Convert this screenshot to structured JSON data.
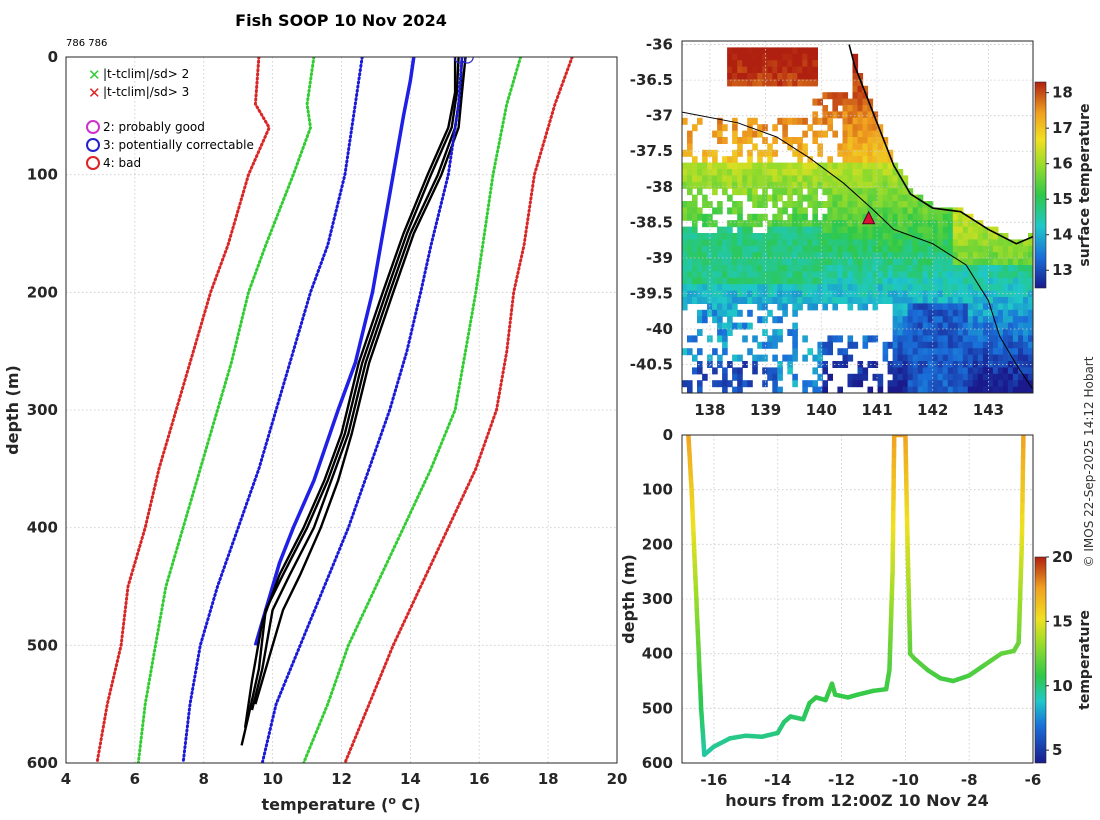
{
  "title": "Fish SOOP 10 Nov 2024",
  "cruise_ids": "786 786",
  "watermark": "© IMOS 22-Sep-2025 14:12 Hobart",
  "legend": {
    "flag_x_2": "|t-tclim|/sd> 2",
    "flag_x_3": "|t-tclim|/sd> 3",
    "qc2": "2: probably good",
    "qc3": "3: potentially correctable",
    "qc4": "4: bad"
  },
  "colors": {
    "observed": "#000000",
    "climatology": "#1f1fe6",
    "sd1": "#1a1ad9",
    "sd2": "#33cc33",
    "sd3": "#d92626",
    "qc2": "#cc33cc",
    "qc3": "#2222cc",
    "qc4": "#dd2222"
  },
  "chart_data": [
    {
      "type": "line",
      "title": "Fish SOOP 10 Nov 2024",
      "xlabel": "temperature (",
      "xlabel_sup": "o",
      "xlabel_end": " C)",
      "ylabel": "depth (m)",
      "xlim": [
        4,
        20
      ],
      "ylim": [
        0,
        600
      ],
      "y_reversed": true,
      "xticks": [
        4,
        6,
        8,
        10,
        12,
        14,
        16,
        18,
        20
      ],
      "yticks": [
        0,
        100,
        200,
        300,
        400,
        500,
        600
      ],
      "series": [
        {
          "name": "climatology",
          "style": "solid",
          "color": "#1f1fe6",
          "points": [
            [
              14.1,
              0
            ],
            [
              14.0,
              20
            ],
            [
              13.8,
              50
            ],
            [
              13.5,
              100
            ],
            [
              13.2,
              150
            ],
            [
              12.9,
              200
            ],
            [
              12.4,
              260
            ],
            [
              11.9,
              300
            ],
            [
              11.2,
              360
            ],
            [
              10.6,
              400
            ],
            [
              10.2,
              430
            ],
            [
              9.8,
              470
            ],
            [
              9.5,
              500
            ]
          ]
        },
        {
          "name": "observed 1",
          "style": "solid",
          "color": "#000000",
          "points": [
            [
              15.4,
              0
            ],
            [
              15.35,
              30
            ],
            [
              15.2,
              60
            ],
            [
              14.6,
              100
            ],
            [
              13.9,
              150
            ],
            [
              13.3,
              200
            ],
            [
              12.6,
              260
            ],
            [
              12.1,
              320
            ],
            [
              11.6,
              360
            ],
            [
              11.0,
              400
            ],
            [
              10.3,
              440
            ],
            [
              9.8,
              470
            ],
            [
              9.6,
              520
            ],
            [
              9.3,
              560
            ],
            [
              9.1,
              585
            ]
          ]
        },
        {
          "name": "observed 2",
          "style": "solid",
          "color": "#000000",
          "points": [
            [
              15.5,
              0
            ],
            [
              15.45,
              30
            ],
            [
              15.3,
              60
            ],
            [
              14.8,
              100
            ],
            [
              14.0,
              150
            ],
            [
              13.4,
              200
            ],
            [
              12.7,
              260
            ],
            [
              12.2,
              320
            ],
            [
              11.7,
              360
            ],
            [
              11.2,
              400
            ],
            [
              10.5,
              440
            ],
            [
              10.0,
              470
            ],
            [
              9.7,
              520
            ],
            [
              9.4,
              555
            ]
          ]
        },
        {
          "name": "observed 3",
          "style": "solid",
          "color": "#000000",
          "points": [
            [
              15.6,
              0
            ],
            [
              15.5,
              30
            ],
            [
              15.4,
              60
            ],
            [
              14.9,
              100
            ],
            [
              14.1,
              150
            ],
            [
              13.5,
              200
            ],
            [
              12.8,
              260
            ],
            [
              12.3,
              320
            ],
            [
              11.9,
              360
            ],
            [
              11.4,
              400
            ],
            [
              10.8,
              440
            ],
            [
              10.3,
              470
            ],
            [
              9.9,
              510
            ],
            [
              9.5,
              550
            ]
          ]
        },
        {
          "name": "observed 4",
          "style": "solid",
          "color": "#000000",
          "points": [
            [
              15.3,
              0
            ],
            [
              15.3,
              30
            ],
            [
              15.1,
              60
            ],
            [
              14.5,
              100
            ],
            [
              13.8,
              150
            ],
            [
              13.2,
              200
            ],
            [
              12.5,
              260
            ],
            [
              12.0,
              320
            ],
            [
              11.5,
              360
            ],
            [
              10.9,
              400
            ],
            [
              10.2,
              440
            ],
            [
              9.7,
              480
            ],
            [
              9.4,
              530
            ],
            [
              9.2,
              570
            ]
          ]
        },
        {
          "name": "clim -1sd",
          "style": "dotted",
          "color": "#1a1ad9",
          "points": [
            [
              12.6,
              0
            ],
            [
              12.4,
              40
            ],
            [
              12.1,
              100
            ],
            [
              11.6,
              160
            ],
            [
              11.1,
              200
            ],
            [
              10.6,
              250
            ],
            [
              10.1,
              300
            ],
            [
              9.6,
              350
            ],
            [
              9.0,
              400
            ],
            [
              8.4,
              450
            ],
            [
              7.9,
              500
            ],
            [
              7.6,
              550
            ],
            [
              7.4,
              600
            ]
          ]
        },
        {
          "name": "clim +1sd",
          "style": "dotted",
          "color": "#1a1ad9",
          "points": [
            [
              15.5,
              0
            ],
            [
              15.4,
              40
            ],
            [
              15.1,
              100
            ],
            [
              14.6,
              160
            ],
            [
              14.3,
              200
            ],
            [
              13.9,
              250
            ],
            [
              13.4,
              300
            ],
            [
              12.8,
              350
            ],
            [
              12.2,
              400
            ],
            [
              11.5,
              450
            ],
            [
              10.8,
              500
            ],
            [
              10.1,
              550
            ],
            [
              9.7,
              600
            ]
          ]
        },
        {
          "name": "clim -2sd",
          "style": "dotted",
          "color": "#33cc33",
          "points": [
            [
              11.2,
              0
            ],
            [
              11.0,
              40
            ],
            [
              11.1,
              60
            ],
            [
              10.6,
              100
            ],
            [
              9.8,
              160
            ],
            [
              9.3,
              200
            ],
            [
              8.8,
              260
            ],
            [
              8.4,
              300
            ],
            [
              7.9,
              350
            ],
            [
              7.4,
              400
            ],
            [
              6.9,
              450
            ],
            [
              6.6,
              500
            ],
            [
              6.3,
              550
            ],
            [
              6.1,
              600
            ]
          ]
        },
        {
          "name": "clim +2sd",
          "style": "dotted",
          "color": "#33cc33",
          "points": [
            [
              17.2,
              0
            ],
            [
              16.8,
              40
            ],
            [
              16.4,
              100
            ],
            [
              16.1,
              160
            ],
            [
              15.9,
              200
            ],
            [
              15.6,
              250
            ],
            [
              15.3,
              300
            ],
            [
              14.6,
              350
            ],
            [
              13.8,
              400
            ],
            [
              13.0,
              450
            ],
            [
              12.2,
              500
            ],
            [
              11.6,
              550
            ],
            [
              10.9,
              600
            ]
          ]
        },
        {
          "name": "clim -3sd",
          "style": "dotted",
          "color": "#d92626",
          "points": [
            [
              9.6,
              0
            ],
            [
              9.5,
              40
            ],
            [
              9.9,
              60
            ],
            [
              9.3,
              100
            ],
            [
              8.7,
              160
            ],
            [
              8.2,
              200
            ],
            [
              7.6,
              260
            ],
            [
              7.2,
              300
            ],
            [
              6.7,
              350
            ],
            [
              6.3,
              400
            ],
            [
              5.8,
              450
            ],
            [
              5.6,
              500
            ],
            [
              5.2,
              550
            ],
            [
              4.9,
              600
            ]
          ]
        },
        {
          "name": "clim +3sd",
          "style": "dotted",
          "color": "#d92626",
          "points": [
            [
              18.7,
              0
            ],
            [
              18.2,
              40
            ],
            [
              17.6,
              100
            ],
            [
              17.3,
              160
            ],
            [
              17.0,
              200
            ],
            [
              16.8,
              250
            ],
            [
              16.5,
              300
            ],
            [
              15.9,
              350
            ],
            [
              15.1,
              400
            ],
            [
              14.3,
              450
            ],
            [
              13.5,
              500
            ],
            [
              12.8,
              550
            ],
            [
              12.1,
              600
            ]
          ]
        }
      ],
      "markers": [
        {
          "name": "qc3 circle",
          "x": 15.45,
          "y": 0
        },
        {
          "name": "qc3 circle",
          "x": 15.65,
          "y": 0
        }
      ]
    },
    {
      "type": "heatmap",
      "title": "",
      "xlabel": "",
      "ylabel": "",
      "xlim": [
        137.5,
        143.8
      ],
      "ylim": [
        -40.9,
        -35.95
      ],
      "xticks": [
        138,
        139,
        140,
        141,
        142,
        143
      ],
      "yticks": [
        -36,
        -36.5,
        -37,
        -37.5,
        -38,
        -38.5,
        -39,
        -39.5,
        -40,
        -40.5
      ],
      "colorbar_label": "surface temperature",
      "colorbar_range": [
        12.5,
        18.3
      ],
      "colorbar_ticks": [
        13,
        14,
        15,
        16,
        17,
        18
      ],
      "coastline": [
        [
          140.5,
          -36.0
        ],
        [
          140.6,
          -36.3
        ],
        [
          140.8,
          -36.7
        ],
        [
          141.1,
          -37.3
        ],
        [
          141.3,
          -37.7
        ],
        [
          141.6,
          -38.1
        ],
        [
          142.0,
          -38.3
        ],
        [
          142.5,
          -38.35
        ],
        [
          143.0,
          -38.6
        ],
        [
          143.5,
          -38.8
        ],
        [
          143.8,
          -38.7
        ]
      ],
      "track": [
        [
          137.5,
          -36.95
        ],
        [
          138.5,
          -37.1
        ],
        [
          139.2,
          -37.3
        ],
        [
          139.8,
          -37.6
        ],
        [
          140.4,
          -37.95
        ],
        [
          140.9,
          -38.3
        ],
        [
          141.3,
          -38.6
        ],
        [
          142.0,
          -38.8
        ],
        [
          142.6,
          -39.1
        ],
        [
          143.0,
          -39.6
        ],
        [
          143.2,
          -40.1
        ],
        [
          143.5,
          -40.5
        ],
        [
          143.8,
          -40.85
        ]
      ],
      "station": {
        "lon": 140.85,
        "lat": -38.45
      }
    },
    {
      "type": "line",
      "title": "",
      "xlabel": "hours from 12:00Z 10 Nov 24",
      "ylabel": "depth (m)",
      "xlim": [
        -17,
        -6
      ],
      "ylim": [
        0,
        600
      ],
      "y_reversed": true,
      "xticks": [
        -16,
        -14,
        -12,
        -10,
        -8,
        -6
      ],
      "yticks": [
        0,
        100,
        200,
        300,
        400,
        500,
        600
      ],
      "colorbar_label": "temperature",
      "colorbar_range": [
        4,
        20
      ],
      "colorbar_ticks": [
        5,
        10,
        15,
        20
      ],
      "series": [
        {
          "name": "depth vs time",
          "points": [
            [
              -16.8,
              0
            ],
            [
              -16.7,
              100
            ],
            [
              -16.55,
              300
            ],
            [
              -16.4,
              500
            ],
            [
              -16.3,
              585
            ],
            [
              -16.0,
              570
            ],
            [
              -15.5,
              555
            ],
            [
              -15.0,
              550
            ],
            [
              -14.5,
              552
            ],
            [
              -14.0,
              545
            ],
            [
              -13.8,
              525
            ],
            [
              -13.6,
              515
            ],
            [
              -13.2,
              520
            ],
            [
              -13.0,
              490
            ],
            [
              -12.8,
              480
            ],
            [
              -12.5,
              485
            ],
            [
              -12.3,
              455
            ],
            [
              -12.2,
              475
            ],
            [
              -11.8,
              480
            ],
            [
              -11.5,
              475
            ],
            [
              -11.0,
              468
            ],
            [
              -10.6,
              465
            ],
            [
              -10.5,
              430
            ],
            [
              -10.4,
              250
            ],
            [
              -10.35,
              0
            ],
            [
              -10.0,
              0
            ],
            [
              -9.95,
              150
            ],
            [
              -9.85,
              400
            ],
            [
              -9.7,
              410
            ],
            [
              -9.3,
              430
            ],
            [
              -8.9,
              445
            ],
            [
              -8.5,
              450
            ],
            [
              -8.0,
              440
            ],
            [
              -7.5,
              420
            ],
            [
              -7.0,
              400
            ],
            [
              -6.6,
              395
            ],
            [
              -6.45,
              380
            ],
            [
              -6.35,
              200
            ],
            [
              -6.3,
              0
            ]
          ]
        }
      ]
    }
  ]
}
